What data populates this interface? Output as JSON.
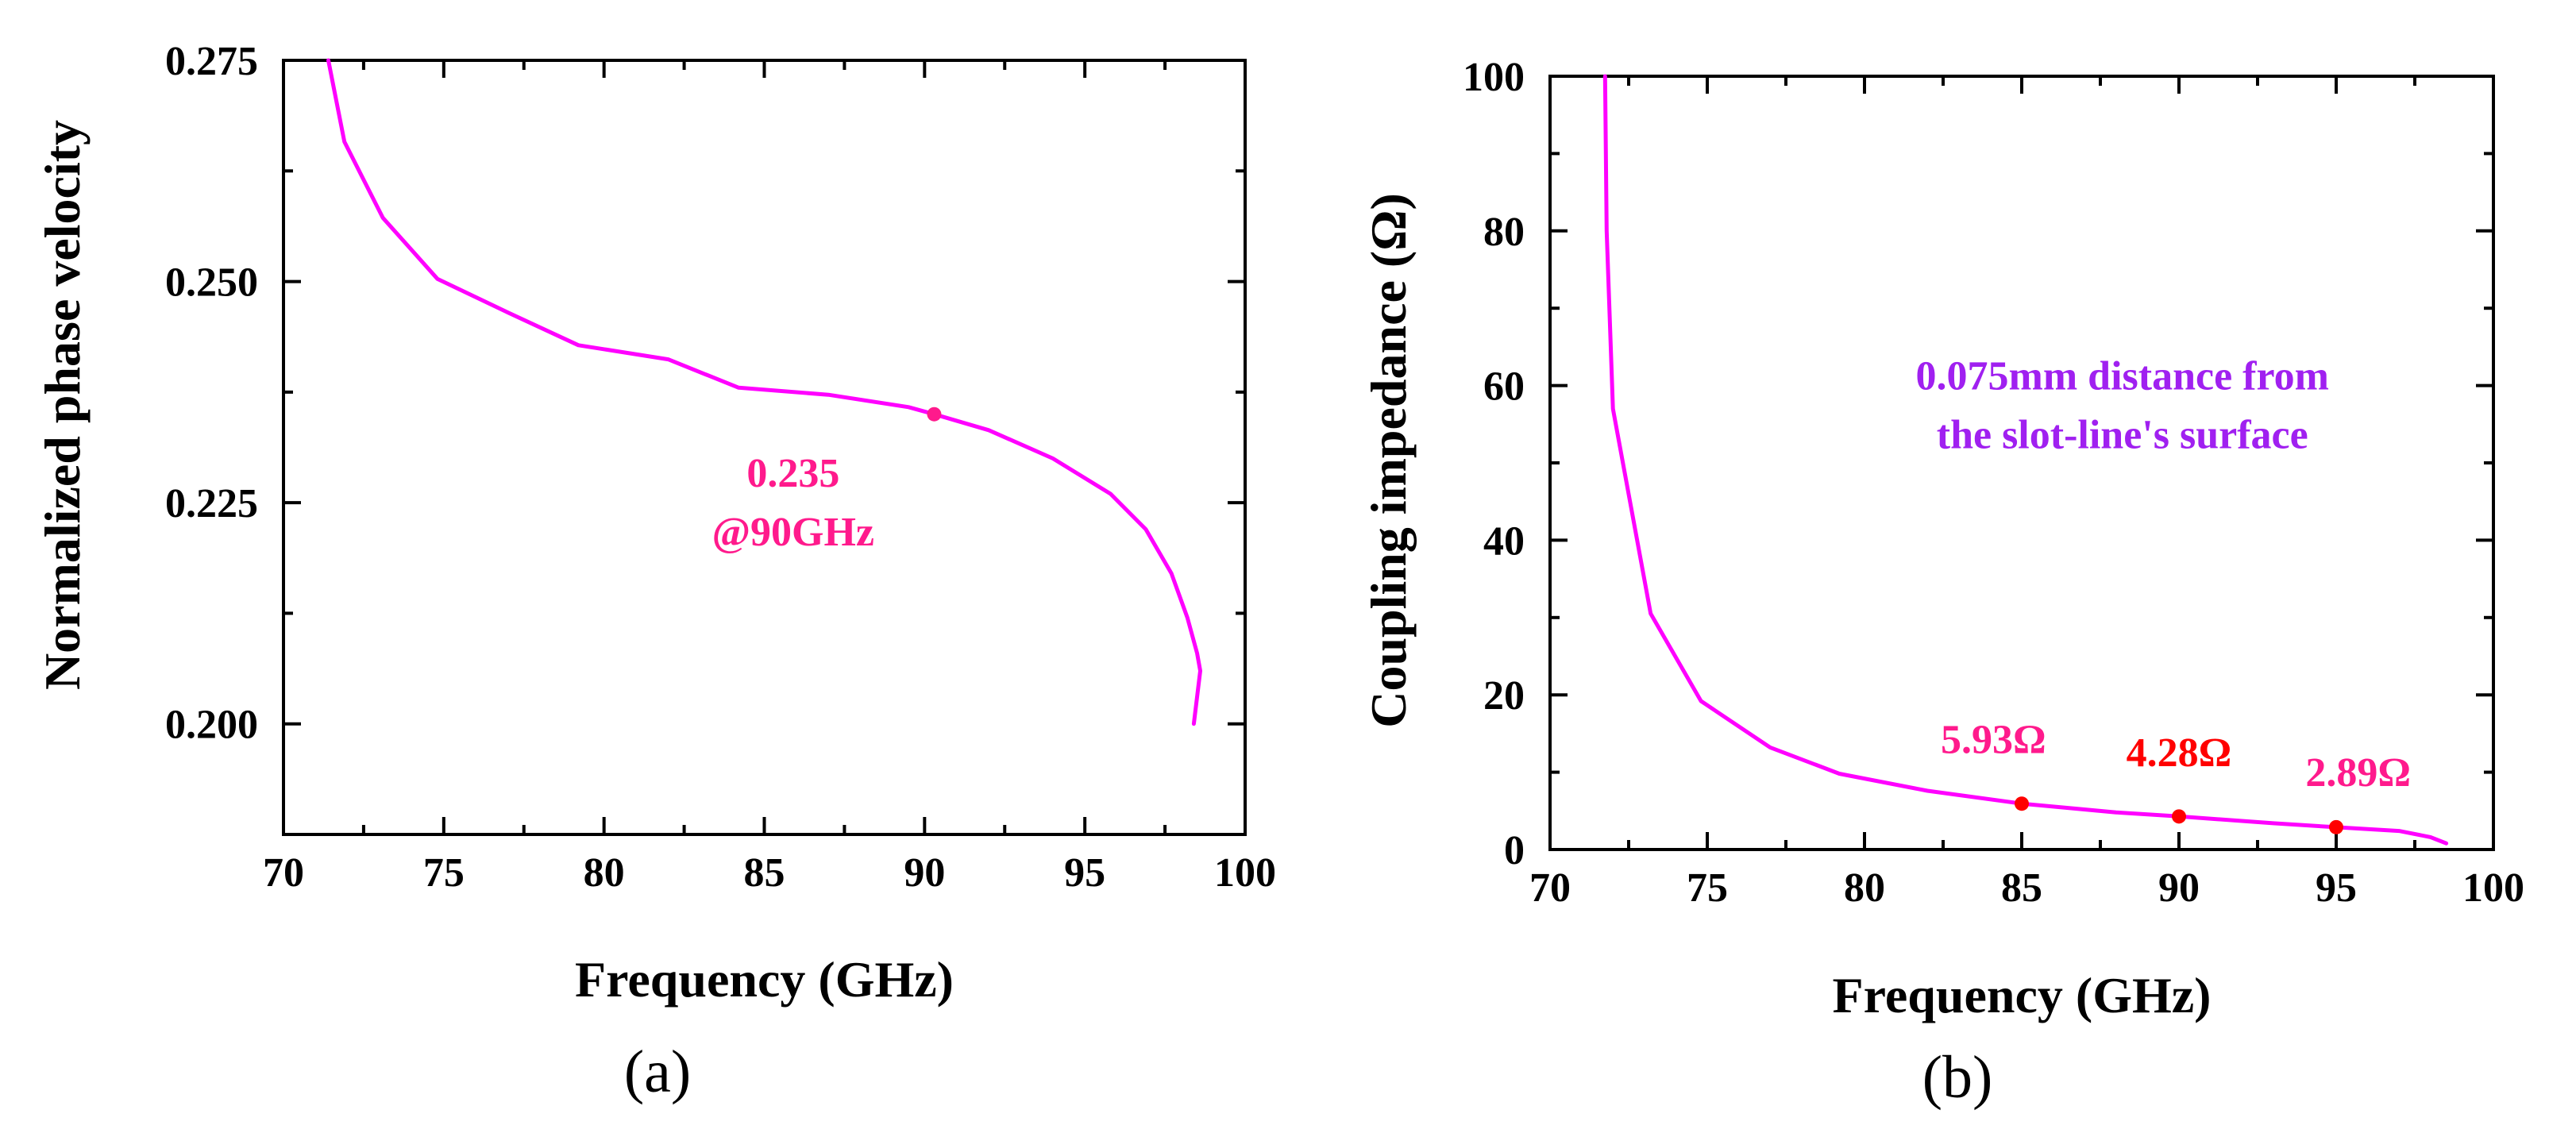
{
  "chart_data": [
    {
      "type": "line",
      "panel": "a",
      "caption": "(a)",
      "xlabel": "Frequency (GHz)",
      "ylabel": "Normalized phase velocity",
      "xlim": [
        70,
        100
      ],
      "ylim": [
        0.1875,
        0.275
      ],
      "xticks": [
        70,
        75,
        80,
        85,
        90,
        95,
        100
      ],
      "xtick_labels": [
        "70",
        "75",
        "80",
        "85",
        "90",
        "95",
        "100"
      ],
      "yticks": [
        0.2,
        0.225,
        0.25,
        0.275
      ],
      "ytick_labels": [
        "0.200",
        "0.225",
        "0.250",
        "0.275"
      ],
      "line_color": "#ff00ff",
      "series": [
        {
          "name": "phase velocity",
          "x": [
            71.4,
            71.9,
            73.1,
            74.8,
            77.0,
            79.2,
            82.0,
            84.2,
            87.0,
            89.5,
            90.3,
            92.0,
            94.0,
            95.8,
            96.9,
            97.7,
            98.2,
            98.5,
            98.6,
            98.4
          ],
          "y": [
            0.275,
            0.2658,
            0.2572,
            0.2503,
            0.2465,
            0.2428,
            0.2412,
            0.238,
            0.2372,
            0.2358,
            0.235,
            0.2332,
            0.23,
            0.226,
            0.222,
            0.217,
            0.212,
            0.208,
            0.206,
            0.2
          ]
        }
      ],
      "markers": [
        {
          "x": 90.3,
          "y": 0.235,
          "color": "#ff1a8c"
        }
      ],
      "annotations": [
        {
          "lines": [
            "0.235",
            "@90GHz"
          ],
          "color": "#ff1a8c",
          "x": 85.9,
          "y": 0.2268
        }
      ]
    },
    {
      "type": "line",
      "panel": "b",
      "caption": "(b)",
      "xlabel": "Frequency (GHz)",
      "ylabel": "Coupling impedance (Ω)",
      "xlim": [
        70,
        100
      ],
      "ylim": [
        0,
        100
      ],
      "xticks": [
        70,
        75,
        80,
        85,
        90,
        95,
        100
      ],
      "xtick_labels": [
        "70",
        "75",
        "80",
        "85",
        "90",
        "95",
        "100"
      ],
      "yticks": [
        0,
        20,
        40,
        60,
        80,
        100
      ],
      "ytick_labels": [
        "0",
        "20",
        "40",
        "60",
        "80",
        "100"
      ],
      "line_color": "#ff00ff",
      "series": [
        {
          "name": "coupling impedance",
          "x": [
            71.75,
            71.8,
            72.0,
            73.2,
            74.8,
            77.0,
            79.2,
            82.0,
            85.0,
            88.0,
            90.0,
            93.0,
            95.0,
            97.0,
            98.0,
            98.5
          ],
          "y": [
            100,
            80,
            57,
            30.5,
            19.2,
            13.2,
            9.8,
            7.6,
            5.93,
            4.8,
            4.28,
            3.4,
            2.89,
            2.4,
            1.6,
            0.8
          ]
        }
      ],
      "markers": [
        {
          "x": 85,
          "y": 5.93,
          "color": "#ff0000"
        },
        {
          "x": 90,
          "y": 4.28,
          "color": "#ff0000"
        },
        {
          "x": 95,
          "y": 2.89,
          "color": "#ff0000"
        }
      ],
      "annotations": [
        {
          "lines": [
            "5.93Ω"
          ],
          "color": "#ff1a8c",
          "x": 84.1,
          "y": 12.5
        },
        {
          "lines": [
            "4.28Ω"
          ],
          "color": "#ff0000",
          "x": 90.0,
          "y": 10.8
        },
        {
          "lines": [
            "2.89Ω"
          ],
          "color": "#ff1a8c",
          "x": 95.7,
          "y": 8.2
        },
        {
          "lines": [
            "0.075mm distance from",
            "the slot-line's surface"
          ],
          "color": "#a020f0",
          "x": 88.2,
          "y": 59.5
        }
      ]
    }
  ]
}
